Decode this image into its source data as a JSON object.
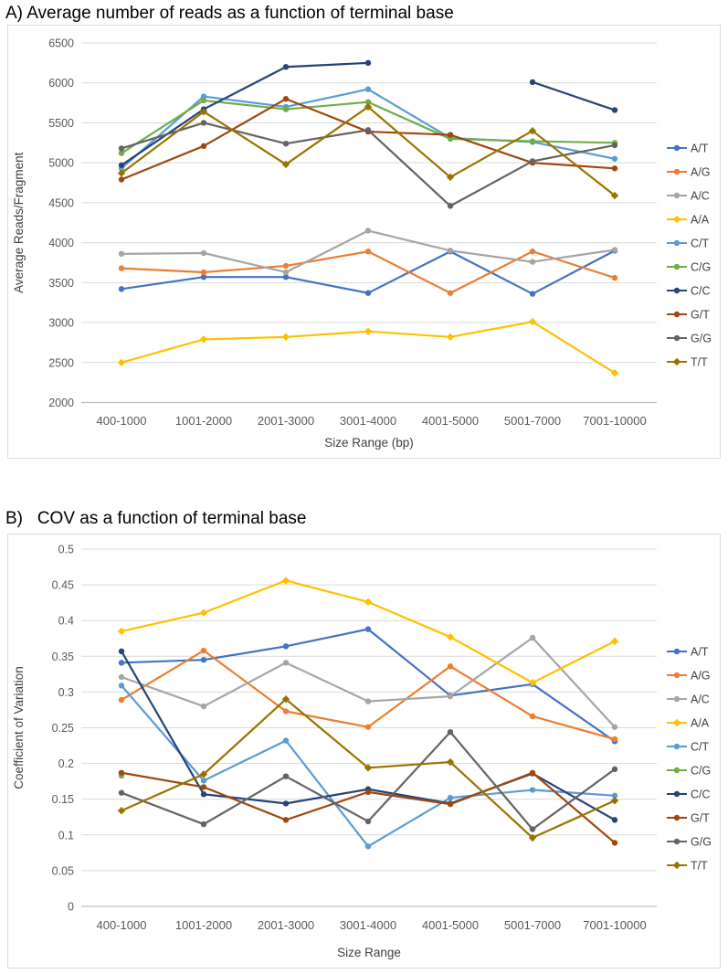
{
  "page": {
    "background": "#FFFFFF"
  },
  "chart_data": [
    {
      "id": "chart-a",
      "type": "line",
      "title": "A) Average number of reads as a function of terminal base",
      "xlabel": "Size Range (bp)",
      "ylabel": "Average Reads/Fragment",
      "ylim": [
        2000,
        6500
      ],
      "grid": true,
      "legend_position": "right",
      "ytick_values": [
        6500,
        6000,
        5500,
        5000,
        4500,
        4000,
        3500,
        3000,
        2500,
        2000
      ],
      "ytick_labels": [
        "6500",
        "6000",
        "5500",
        "5000",
        "4500",
        "4000",
        "3500",
        "3000",
        "2500",
        "2000"
      ],
      "categories": [
        "400-1000",
        "1001-2000",
        "2001-3000",
        "3001-4000",
        "4001-5000",
        "5001-7000",
        "7001-10000"
      ],
      "series": [
        {
          "name": "A/T",
          "color": "#4472C4",
          "marker": "circle",
          "values": [
            3420,
            3570,
            3570,
            3370,
            3890,
            3360,
            3900
          ]
        },
        {
          "name": "A/G",
          "color": "#ED7D31",
          "marker": "circle",
          "values": [
            3680,
            3630,
            3710,
            3890,
            3370,
            3890,
            3560
          ]
        },
        {
          "name": "A/C",
          "color": "#A5A5A5",
          "marker": "circle",
          "values": [
            3860,
            3870,
            3630,
            4150,
            3900,
            3760,
            3910
          ]
        },
        {
          "name": "A/A",
          "color": "#FFC000",
          "marker": "diamond",
          "values": [
            2500,
            2790,
            2820,
            2890,
            2820,
            3010,
            2370
          ]
        },
        {
          "name": "C/T",
          "color": "#5B9BD5",
          "marker": "circle",
          "values": [
            4930,
            5830,
            5700,
            5920,
            5310,
            5260,
            5050
          ]
        },
        {
          "name": "C/G",
          "color": "#70AD47",
          "marker": "circle",
          "values": [
            5120,
            5780,
            5670,
            5760,
            5300,
            5270,
            5250
          ]
        },
        {
          "name": "C/C",
          "color": "#264478",
          "marker": "circle",
          "values": [
            4970,
            5670,
            6200,
            6250,
            null,
            6010,
            5660
          ]
        },
        {
          "name": "G/T",
          "color": "#9E480E",
          "marker": "circle",
          "values": [
            4790,
            5210,
            5800,
            5390,
            5350,
            5000,
            4930
          ]
        },
        {
          "name": "G/G",
          "color": "#636363",
          "marker": "circle",
          "values": [
            5180,
            5500,
            5240,
            5410,
            4460,
            5020,
            5220
          ]
        },
        {
          "name": "T/T",
          "color": "#997300",
          "marker": "diamond",
          "values": [
            4870,
            5640,
            4980,
            5700,
            4820,
            5400,
            4590
          ]
        }
      ]
    },
    {
      "id": "chart-b",
      "type": "line",
      "title": "B)   COV as a function of terminal base",
      "xlabel": "Size Range",
      "ylabel": "Coefficient of Variation",
      "ylim": [
        0,
        0.5
      ],
      "grid": true,
      "legend_position": "right",
      "ytick_values": [
        0.5,
        0.45,
        0.4,
        0.35,
        0.3,
        0.25,
        0.2,
        0.15,
        0.1,
        0.05,
        0
      ],
      "ytick_labels": [
        "0.5",
        "0.45",
        "0.4",
        "0.35",
        "0.3",
        "0.25",
        "0.2",
        "0.15",
        "0.1",
        "0.05",
        "0"
      ],
      "categories": [
        "400-1000",
        "1001-2000",
        "2001-3000",
        "3001-4000",
        "4001-5000",
        "5001-7000",
        "7001-10000"
      ],
      "series": [
        {
          "name": "A/T",
          "color": "#4472C4",
          "marker": "circle",
          "values": [
            0.341,
            0.345,
            0.364,
            0.388,
            0.295,
            0.311,
            0.231
          ]
        },
        {
          "name": "A/G",
          "color": "#ED7D31",
          "marker": "circle",
          "values": [
            0.289,
            0.358,
            0.273,
            0.251,
            0.336,
            0.266,
            0.234
          ]
        },
        {
          "name": "A/C",
          "color": "#A5A5A5",
          "marker": "circle",
          "values": [
            0.321,
            0.28,
            0.341,
            0.287,
            0.294,
            0.376,
            0.251
          ]
        },
        {
          "name": "A/A",
          "color": "#FFC000",
          "marker": "diamond",
          "values": [
            0.385,
            0.411,
            0.456,
            0.426,
            0.377,
            0.313,
            0.371
          ]
        },
        {
          "name": "C/T",
          "color": "#5B9BD5",
          "marker": "circle",
          "values": [
            0.309,
            0.176,
            0.232,
            0.084,
            0.152,
            0.163,
            0.155
          ]
        },
        {
          "name": "C/G",
          "color": "#70AD47",
          "marker": "circle",
          "values": [
            0.183,
            null,
            null,
            null,
            null,
            null,
            null
          ]
        },
        {
          "name": "C/C",
          "color": "#264478",
          "marker": "circle",
          "values": [
            0.357,
            0.157,
            0.144,
            0.164,
            0.144,
            0.186,
            0.121
          ]
        },
        {
          "name": "G/T",
          "color": "#9E480E",
          "marker": "circle",
          "values": [
            0.187,
            0.167,
            0.121,
            0.16,
            0.143,
            0.187,
            0.089
          ]
        },
        {
          "name": "G/G",
          "color": "#636363",
          "marker": "circle",
          "values": [
            0.159,
            0.115,
            0.182,
            0.119,
            0.244,
            0.108,
            0.192
          ]
        },
        {
          "name": "T/T",
          "color": "#997300",
          "marker": "diamond",
          "values": [
            0.134,
            0.185,
            0.29,
            0.194,
            0.202,
            0.096,
            0.148
          ]
        }
      ]
    }
  ]
}
